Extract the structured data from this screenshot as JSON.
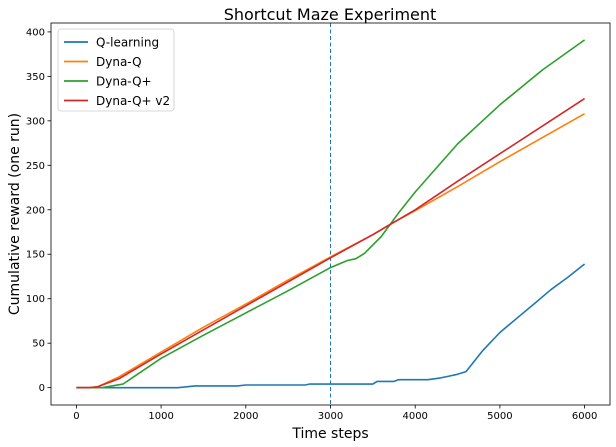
{
  "chart_data": {
    "type": "line",
    "title": "Shortcut Maze Experiment",
    "xlabel": "Time steps",
    "ylabel": "Cumulative reward (one run)",
    "xlim": [
      -300,
      6300
    ],
    "ylim": [
      -19.5,
      410
    ],
    "xticks": [
      0,
      1000,
      2000,
      3000,
      4000,
      5000,
      6000
    ],
    "yticks": [
      0,
      50,
      100,
      150,
      200,
      250,
      300,
      350,
      400
    ],
    "grid": false,
    "legend_position": "top-left",
    "vline": {
      "x": 3000,
      "style": "dashed",
      "color": "#1f77b4"
    },
    "series": [
      {
        "name": "Q-learning",
        "color": "#1f77b4",
        "x": [
          0,
          600,
          1200,
          1400,
          1900,
          2000,
          2700,
          2750,
          3500,
          3550,
          3750,
          3800,
          4150,
          4300,
          4400,
          4500,
          4600,
          4800,
          5000,
          5200,
          5400,
          5600,
          5800,
          6000
        ],
        "y": [
          0,
          0,
          0,
          2,
          2,
          3,
          3,
          4,
          4,
          7,
          7,
          9,
          9,
          11,
          13,
          15,
          18,
          42,
          62,
          78,
          94,
          110,
          124,
          139
        ]
      },
      {
        "name": "Dyna-Q",
        "color": "#ff7f0e",
        "x": [
          0,
          150,
          250,
          500,
          1000,
          1500,
          2000,
          2500,
          3000,
          3500,
          3750,
          4000,
          4500,
          5000,
          5500,
          6000
        ],
        "y": [
          0,
          0,
          1,
          12,
          40,
          68,
          94,
          121,
          147,
          172,
          186,
          199,
          226,
          254,
          281,
          308
        ]
      },
      {
        "name": "Dyna-Q+",
        "color": "#2ca02c",
        "x": [
          0,
          200,
          300,
          550,
          1000,
          1500,
          2000,
          2500,
          3000,
          3200,
          3300,
          3400,
          3600,
          3800,
          4000,
          4500,
          5000,
          5500,
          6000
        ],
        "y": [
          0,
          0,
          0,
          4,
          33,
          59,
          84,
          109,
          135,
          143,
          145,
          151,
          170,
          196,
          220,
          274,
          318,
          357,
          391
        ]
      },
      {
        "name": "Dyna-Q+ v2",
        "color": "#d62728",
        "x": [
          0,
          150,
          250,
          500,
          1000,
          1500,
          2000,
          2500,
          3000,
          3500,
          3750,
          4000,
          4500,
          5000,
          5500,
          6000
        ],
        "y": [
          0,
          0,
          1,
          10,
          38,
          65,
          92,
          119,
          146,
          172,
          186,
          200,
          232,
          263,
          294,
          325
        ]
      }
    ]
  }
}
